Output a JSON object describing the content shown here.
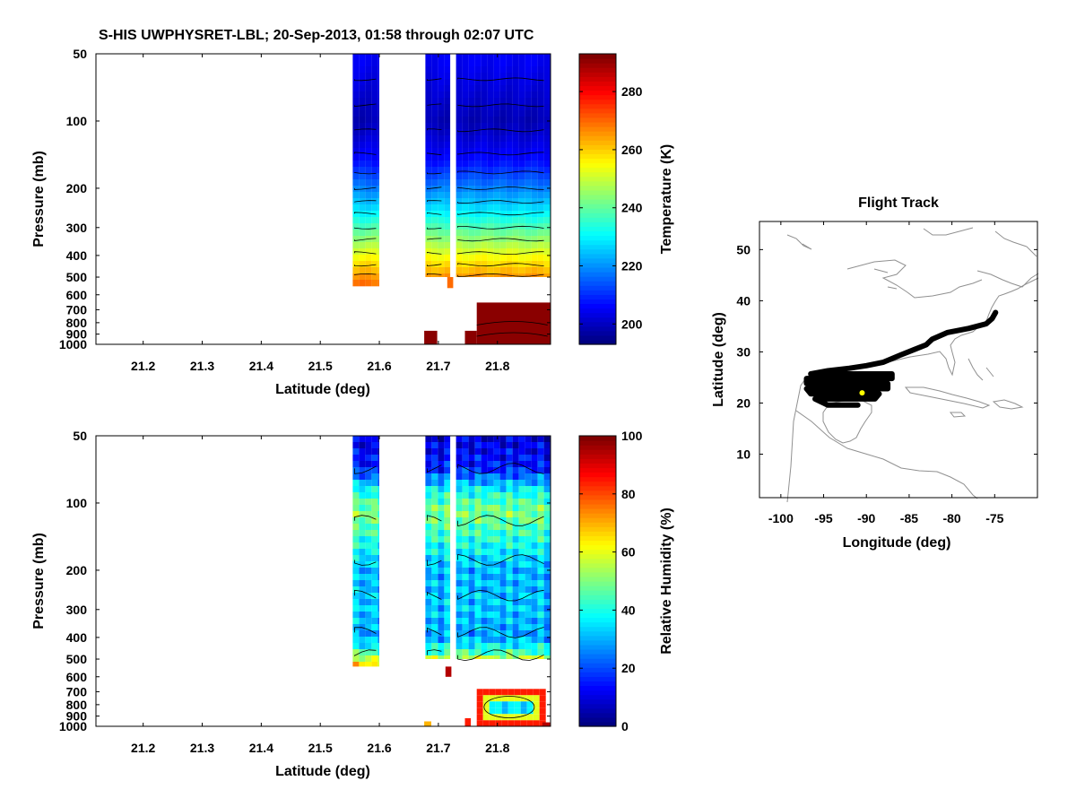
{
  "title": "S-HIS UWPHYSRET-LBL;   20-Sep-2013, 01:58 through 02:07 UTC",
  "chart_data": [
    {
      "type": "heatmap",
      "xlabel": "Latitude (deg)",
      "ylabel": "Pressure (mb)",
      "colorbar_label": "Temperature (K)",
      "xlim": [
        21.12,
        21.89
      ],
      "ylim": [
        50,
        1000
      ],
      "yscale": "log",
      "y_reversed": true,
      "x_ticks": [
        "21.2",
        "21.3",
        "21.4",
        "21.5",
        "21.6",
        "21.7",
        "21.8"
      ],
      "y_ticks": [
        "50",
        "100",
        "200",
        "300",
        "400",
        "500",
        "600",
        "700",
        "800",
        "900",
        "1000"
      ],
      "colorbar_ticks": [
        "200",
        "220",
        "240",
        "260",
        "280"
      ],
      "clim": [
        193,
        293
      ],
      "colormap": "jet",
      "data_segments": [
        {
          "lat_start": 21.555,
          "lat_end": 21.6,
          "p_bottom": 550
        },
        {
          "lat_start": 21.678,
          "lat_end": 21.72,
          "p_bottom": 500
        },
        {
          "lat_start": 21.73,
          "lat_end": 21.89,
          "p_bottom": 500
        }
      ],
      "levels": [
        {
          "p": 50,
          "value": 205
        },
        {
          "p": 70,
          "value": 202
        },
        {
          "p": 100,
          "value": 198
        },
        {
          "p": 150,
          "value": 206
        },
        {
          "p": 200,
          "value": 218
        },
        {
          "p": 250,
          "value": 228
        },
        {
          "p": 300,
          "value": 238
        },
        {
          "p": 400,
          "value": 254
        },
        {
          "p": 500,
          "value": 266
        },
        {
          "p": 550,
          "value": 271
        }
      ],
      "lower_warm_region": {
        "p_top": 650,
        "p_bottom": 1000,
        "value": 292
      }
    },
    {
      "type": "heatmap",
      "xlabel": "Latitude (deg)",
      "ylabel": "Pressure (mb)",
      "colorbar_label": "Relative Humidity (%)",
      "xlim": [
        21.12,
        21.89
      ],
      "ylim": [
        50,
        1000
      ],
      "yscale": "log",
      "y_reversed": true,
      "x_ticks": [
        "21.2",
        "21.3",
        "21.4",
        "21.5",
        "21.6",
        "21.7",
        "21.8"
      ],
      "y_ticks": [
        "50",
        "100",
        "200",
        "300",
        "400",
        "500",
        "600",
        "700",
        "800",
        "900",
        "1000"
      ],
      "colorbar_ticks": [
        "0",
        "20",
        "40",
        "60",
        "80",
        "100"
      ],
      "clim": [
        0,
        100
      ],
      "colormap": "jet",
      "levels": [
        {
          "p": 50,
          "value": 8
        },
        {
          "p": 70,
          "value": 15
        },
        {
          "p": 90,
          "value": 40
        },
        {
          "p": 110,
          "value": 50
        },
        {
          "p": 140,
          "value": 42
        },
        {
          "p": 200,
          "value": 30
        },
        {
          "p": 300,
          "value": 32
        },
        {
          "p": 400,
          "value": 28
        },
        {
          "p": 470,
          "value": 45
        },
        {
          "p": 540,
          "value": 70
        }
      ],
      "lower_moist_region": {
        "p_top": 680,
        "p_bottom": 950,
        "value": 35
      }
    },
    {
      "type": "map",
      "title": "Flight Track",
      "xlabel": "Longitude (deg)",
      "ylabel": "Latitude (deg)",
      "xlim": [
        -102.5,
        -70
      ],
      "ylim": [
        1.5,
        55.5
      ],
      "x_ticks": [
        "-100",
        "-95",
        "-90",
        "-85",
        "-80",
        "-75"
      ],
      "y_ticks": [
        "10",
        "20",
        "30",
        "40",
        "50"
      ],
      "track_color": "#000000",
      "highlight_color": "#ffff00",
      "track": [
        [
          -74.9,
          37.7
        ],
        [
          -75.3,
          36.5
        ],
        [
          -76.0,
          35.5
        ],
        [
          -78.0,
          34.6
        ],
        [
          -80.5,
          33.8
        ],
        [
          -82.3,
          32.5
        ],
        [
          -83.0,
          31.4
        ],
        [
          -84.5,
          30.4
        ],
        [
          -86.0,
          29.4
        ],
        [
          -88.0,
          28.0
        ],
        [
          -90.0,
          27.3
        ],
        [
          -92.0,
          26.8
        ],
        [
          -94.5,
          26.3
        ],
        [
          -96.5,
          25.7
        ],
        [
          -87.0,
          25.7
        ],
        [
          -87.0,
          24.8
        ],
        [
          -97.0,
          24.8
        ],
        [
          -97.0,
          23.8
        ],
        [
          -87.5,
          23.8
        ],
        [
          -87.5,
          22.8
        ],
        [
          -97.0,
          22.8
        ],
        [
          -96.5,
          21.8
        ],
        [
          -88.5,
          21.8
        ],
        [
          -89.0,
          20.8
        ],
        [
          -96.0,
          20.8
        ],
        [
          -94.5,
          19.6
        ],
        [
          -91.0,
          19.6
        ]
      ],
      "highlight_point": [
        -90.5,
        22.0
      ]
    }
  ]
}
